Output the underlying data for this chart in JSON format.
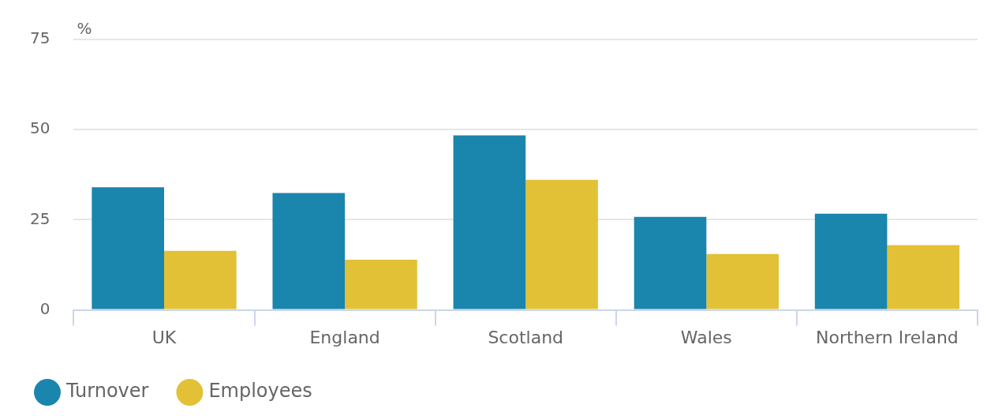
{
  "chart_data": {
    "type": "bar",
    "ylabel": "%",
    "categories": [
      "UK",
      "England",
      "Scotland",
      "Wales",
      "Northern Ireland"
    ],
    "series": [
      {
        "name": "Turnover",
        "color": "#1a85ad",
        "values": [
          34,
          32.4,
          48.4,
          25.8,
          26.7
        ]
      },
      {
        "name": "Employees",
        "color": "#e2c136",
        "values": [
          16.4,
          13.9,
          36.1,
          15.5,
          18
        ]
      }
    ],
    "ylim": [
      0,
      75
    ],
    "yticks": [
      0,
      25,
      50,
      75
    ],
    "grid": "y",
    "legend": "bottom left"
  }
}
